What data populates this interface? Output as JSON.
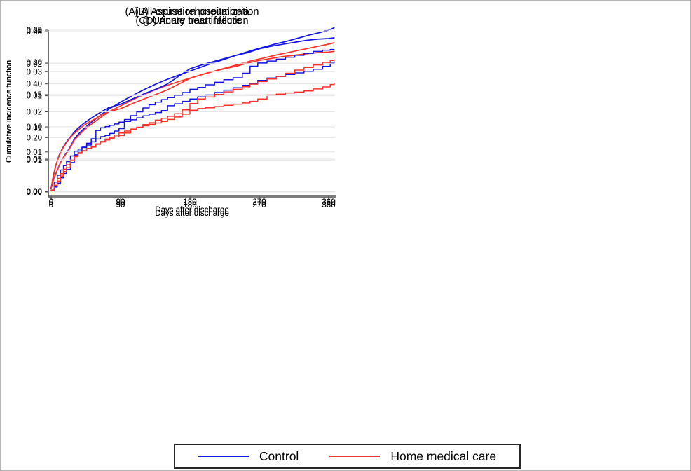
{
  "figure": {
    "background": "#ffffff",
    "border_color": "#b9b9b9",
    "gridline_color": "#e6e6e6",
    "axis_color": "#4a4a4a"
  },
  "legend": {
    "items": [
      {
        "label": "Control",
        "color": "#1515e6"
      },
      {
        "label": "Home medical care",
        "color": "#f7342c"
      }
    ]
  },
  "chart_data": [
    {
      "id": "A",
      "type": "line",
      "style": "smooth",
      "title": "(A) All-cause rehospitalization",
      "xlabel": "Days after discharge",
      "ylabel": "Cumulative incidence function",
      "x_ticks": [
        0,
        90,
        180,
        270,
        360
      ],
      "xlim": [
        0,
        370
      ],
      "ylim": [
        0,
        0.62
      ],
      "grid": true,
      "y_ticks": [
        {
          "v": 0.0,
          "label": "0.00"
        },
        {
          "v": 0.2,
          "label": "0.20"
        },
        {
          "v": 0.4,
          "label": "0.40"
        },
        {
          "v": 0.6,
          "label": "0.60"
        }
      ],
      "series": [
        {
          "name": "Control",
          "color": "#1515e6",
          "x": [
            0,
            3,
            6,
            10,
            14,
            18,
            22,
            26,
            30,
            36,
            42,
            50,
            58,
            66,
            75,
            90,
            105,
            120,
            135,
            150,
            165,
            180,
            200,
            220,
            240,
            260,
            275,
            290,
            305,
            320,
            335,
            350,
            362,
            367
          ],
          "y": [
            0.012,
            0.045,
            0.065,
            0.094,
            0.118,
            0.136,
            0.152,
            0.172,
            0.195,
            0.215,
            0.232,
            0.252,
            0.27,
            0.288,
            0.306,
            0.332,
            0.356,
            0.378,
            0.398,
            0.416,
            0.432,
            0.447,
            0.468,
            0.487,
            0.506,
            0.524,
            0.536,
            0.548,
            0.558,
            0.57,
            0.582,
            0.592,
            0.602,
            0.609
          ]
        },
        {
          "name": "Home medical care",
          "color": "#f7342c",
          "x": [
            0,
            3,
            6,
            10,
            14,
            18,
            22,
            26,
            30,
            36,
            42,
            50,
            58,
            66,
            75,
            90,
            105,
            120,
            135,
            150,
            165,
            180,
            200,
            220,
            240,
            260,
            275,
            290,
            305,
            320,
            335,
            350,
            362,
            367
          ],
          "y": [
            0.012,
            0.045,
            0.065,
            0.094,
            0.117,
            0.134,
            0.15,
            0.169,
            0.191,
            0.209,
            0.226,
            0.245,
            0.262,
            0.279,
            0.296,
            0.318,
            0.34,
            0.36,
            0.378,
            0.394,
            0.408,
            0.421,
            0.438,
            0.454,
            0.47,
            0.486,
            0.496,
            0.506,
            0.515,
            0.524,
            0.533,
            0.542,
            0.549,
            0.553
          ]
        }
      ]
    },
    {
      "id": "B",
      "type": "line",
      "style": "smooth",
      "title": "(B) Aspiration pneumonia",
      "xlabel": "Days after discharge",
      "ylabel": "Cumulative incidence function",
      "x_ticks": [
        0,
        90,
        180,
        270,
        360
      ],
      "xlim": [
        0,
        370
      ],
      "ylim": [
        0,
        0.258
      ],
      "grid": true,
      "y_ticks": [
        {
          "v": 0.0,
          "label": "0.00"
        },
        {
          "v": 0.05,
          "label": "0.05"
        },
        {
          "v": 0.1,
          "label": "0.10"
        },
        {
          "v": 0.15,
          "label": "0.15"
        },
        {
          "v": 0.2,
          "label": "0.20"
        },
        {
          "v": 0.25,
          "label": "0.25"
        }
      ],
      "series": [
        {
          "name": "Control",
          "color": "#1515e6",
          "x": [
            0,
            3,
            6,
            10,
            14,
            18,
            22,
            26,
            30,
            36,
            42,
            50,
            58,
            66,
            75,
            90,
            105,
            120,
            135,
            150,
            165,
            180,
            195,
            210,
            225,
            240,
            255,
            270,
            285,
            300,
            315,
            330,
            345,
            360,
            367
          ],
          "y": [
            0.005,
            0.025,
            0.04,
            0.055,
            0.065,
            0.073,
            0.08,
            0.086,
            0.092,
            0.099,
            0.105,
            0.112,
            0.118,
            0.124,
            0.13,
            0.135,
            0.143,
            0.151,
            0.158,
            0.166,
            0.178,
            0.19,
            0.196,
            0.201,
            0.206,
            0.211,
            0.215,
            0.221,
            0.225,
            0.228,
            0.231,
            0.234,
            0.236,
            0.237,
            0.238
          ]
        },
        {
          "name": "Home medical care",
          "color": "#f7342c",
          "x": [
            0,
            3,
            6,
            10,
            14,
            18,
            22,
            26,
            30,
            36,
            42,
            50,
            58,
            66,
            75,
            90,
            105,
            120,
            135,
            150,
            165,
            180,
            195,
            210,
            225,
            240,
            255,
            270,
            285,
            300,
            315,
            330,
            345,
            360,
            367
          ],
          "y": [
            0.005,
            0.025,
            0.04,
            0.054,
            0.064,
            0.072,
            0.079,
            0.085,
            0.09,
            0.096,
            0.102,
            0.108,
            0.113,
            0.119,
            0.124,
            0.128,
            0.136,
            0.143,
            0.15,
            0.157,
            0.166,
            0.175,
            0.181,
            0.186,
            0.19,
            0.194,
            0.199,
            0.203,
            0.206,
            0.209,
            0.211,
            0.213,
            0.215,
            0.216,
            0.217
          ]
        }
      ]
    },
    {
      "id": "C",
      "type": "line",
      "style": "step",
      "title": "(C) Urinary tract infection",
      "xlabel": "Days after discharge",
      "ylabel": "Cumulative incidence function",
      "x_ticks": [
        0,
        90,
        180,
        270,
        360
      ],
      "xlim": [
        0,
        370
      ],
      "ylim": [
        0,
        0.0415
      ],
      "grid": true,
      "y_ticks": [
        {
          "v": 0.0,
          "label": "0.00"
        },
        {
          "v": 0.01,
          "label": "0.01"
        },
        {
          "v": 0.02,
          "label": "0.02"
        },
        {
          "v": 0.03,
          "label": "0.03"
        },
        {
          "v": 0.04,
          "label": "0.04"
        }
      ],
      "series": [
        {
          "name": "Control",
          "color": "#1515e6",
          "x": [
            0,
            4,
            8,
            12,
            16,
            20,
            25,
            30,
            35,
            40,
            46,
            52,
            58,
            64,
            70,
            76,
            82,
            88,
            95,
            103,
            111,
            119,
            127,
            135,
            143,
            151,
            160,
            170,
            180,
            190,
            200,
            212,
            224,
            236,
            248,
            258,
            268,
            280,
            292,
            304,
            316,
            328,
            340,
            352,
            362,
            367
          ],
          "y": [
            0.0005,
            0.0025,
            0.0042,
            0.0055,
            0.0066,
            0.0076,
            0.009,
            0.0102,
            0.0107,
            0.0111,
            0.0117,
            0.0125,
            0.0132,
            0.0138,
            0.0141,
            0.0146,
            0.0152,
            0.0158,
            0.0176,
            0.018,
            0.0185,
            0.019,
            0.0194,
            0.0198,
            0.0203,
            0.0215,
            0.022,
            0.0226,
            0.0232,
            0.0237,
            0.0242,
            0.0248,
            0.0254,
            0.026,
            0.0266,
            0.0271,
            0.0278,
            0.0284,
            0.0288,
            0.0293,
            0.0297,
            0.0301,
            0.0306,
            0.0313,
            0.0321,
            0.0325
          ]
        },
        {
          "name": "Home medical care",
          "color": "#f7342c",
          "x": [
            0,
            4,
            8,
            12,
            16,
            20,
            25,
            30,
            35,
            40,
            46,
            52,
            58,
            64,
            70,
            76,
            82,
            88,
            95,
            103,
            111,
            119,
            127,
            135,
            143,
            151,
            160,
            170,
            180,
            190,
            200,
            212,
            224,
            236,
            248,
            258,
            268,
            280,
            292,
            304,
            316,
            328,
            340,
            352,
            362,
            367
          ],
          "y": [
            0.0005,
            0.002,
            0.0034,
            0.0046,
            0.0057,
            0.0068,
            0.008,
            0.0092,
            0.0098,
            0.0103,
            0.0108,
            0.0112,
            0.0119,
            0.0126,
            0.0132,
            0.0137,
            0.0142,
            0.0147,
            0.0152,
            0.0157,
            0.0161,
            0.0165,
            0.0169,
            0.0172,
            0.0176,
            0.0181,
            0.0187,
            0.0194,
            0.0204,
            0.0208,
            0.021,
            0.0213,
            0.0216,
            0.0219,
            0.0222,
            0.0226,
            0.0232,
            0.0242,
            0.0244,
            0.0247,
            0.0249,
            0.0252,
            0.0257,
            0.0262,
            0.0268,
            0.0271
          ]
        }
      ]
    },
    {
      "id": "D",
      "type": "line",
      "style": "step",
      "title": "(D) Acute heart failure",
      "xlabel": "Days after discharge",
      "ylabel": "Cumulative incidence function",
      "x_ticks": [
        0,
        90,
        180,
        270,
        360
      ],
      "xlim": [
        0,
        370
      ],
      "ylim": [
        0,
        0.026
      ],
      "grid": true,
      "y_ticks": [
        {
          "v": 0.0,
          "label": "0.00"
        },
        {
          "v": 0.005,
          "label": "0.01"
        },
        {
          "v": 0.01,
          "label": "0.01"
        },
        {
          "v": 0.015,
          "label": "0.01"
        },
        {
          "v": 0.02,
          "label": "0.02"
        },
        {
          "v": 0.025,
          "label": "0.03"
        }
      ],
      "series": [
        {
          "name": "Control",
          "color": "#1515e6",
          "x": [
            0,
            4,
            8,
            12,
            16,
            20,
            25,
            30,
            35,
            40,
            46,
            52,
            58,
            64,
            70,
            76,
            82,
            88,
            95,
            103,
            111,
            119,
            127,
            135,
            143,
            151,
            160,
            170,
            180,
            190,
            200,
            212,
            224,
            236,
            248,
            258,
            268,
            280,
            292,
            304,
            316,
            328,
            340,
            352,
            362,
            367
          ],
          "y": [
            0.0002,
            0.0008,
            0.0014,
            0.0022,
            0.0029,
            0.0035,
            0.0046,
            0.0058,
            0.0064,
            0.007,
            0.0076,
            0.0083,
            0.0096,
            0.01,
            0.0102,
            0.0104,
            0.0106,
            0.0109,
            0.0113,
            0.0119,
            0.0125,
            0.0131,
            0.0136,
            0.014,
            0.0144,
            0.0147,
            0.0151,
            0.0155,
            0.016,
            0.0163,
            0.0167,
            0.0171,
            0.0175,
            0.0178,
            0.0185,
            0.0196,
            0.0201,
            0.0204,
            0.0207,
            0.021,
            0.0213,
            0.0216,
            0.0219,
            0.0221,
            0.0222,
            0.0222
          ]
        },
        {
          "name": "Home medical care",
          "color": "#f7342c",
          "x": [
            0,
            4,
            8,
            12,
            16,
            20,
            25,
            30,
            35,
            40,
            46,
            52,
            58,
            64,
            70,
            76,
            82,
            88,
            95,
            103,
            111,
            119,
            127,
            135,
            143,
            151,
            160,
            170,
            180,
            190,
            200,
            212,
            224,
            236,
            248,
            258,
            268,
            280,
            292,
            304,
            316,
            328,
            340,
            352,
            362,
            367
          ],
          "y": [
            0.0003,
            0.001,
            0.0017,
            0.0025,
            0.0032,
            0.0038,
            0.0049,
            0.0055,
            0.006,
            0.0064,
            0.0068,
            0.0071,
            0.0075,
            0.0078,
            0.0081,
            0.0084,
            0.0086,
            0.0088,
            0.0092,
            0.0097,
            0.0101,
            0.0105,
            0.0108,
            0.0112,
            0.0115,
            0.0118,
            0.0122,
            0.0128,
            0.0138,
            0.0145,
            0.0148,
            0.0152,
            0.0156,
            0.016,
            0.0164,
            0.0168,
            0.0172,
            0.0176,
            0.018,
            0.0185,
            0.019,
            0.0194,
            0.0198,
            0.0202,
            0.0205,
            0.0206
          ]
        }
      ]
    }
  ]
}
